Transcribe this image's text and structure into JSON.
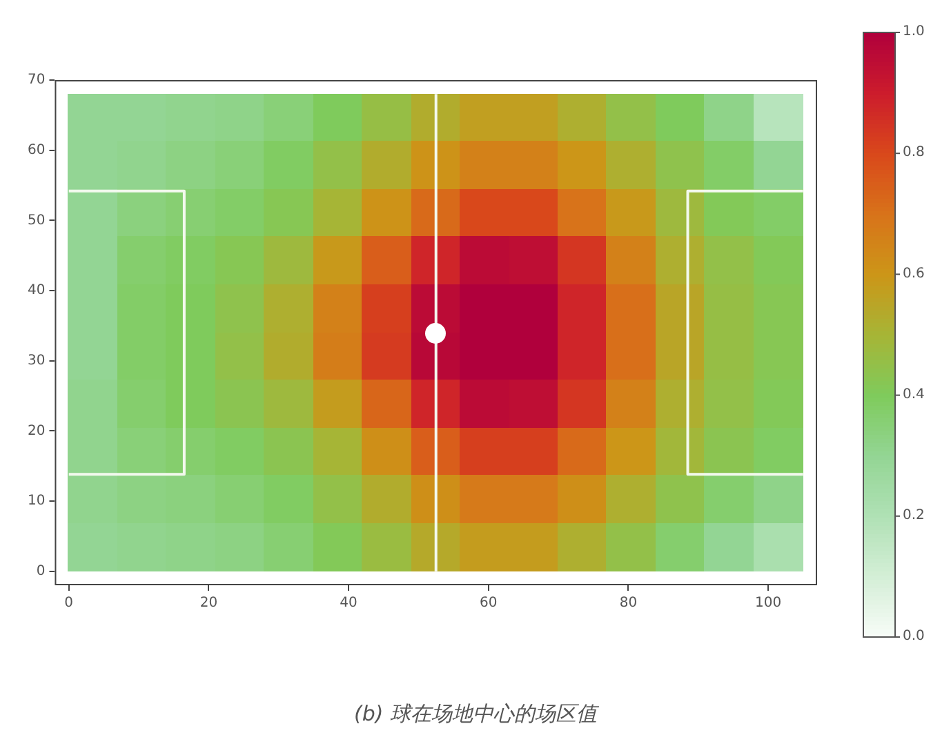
{
  "chart_data": {
    "type": "heatmap",
    "x": [
      3.5,
      10.5,
      17.5,
      24.5,
      31.5,
      38.5,
      45.5,
      52.5,
      59.5,
      66.5,
      73.5,
      80.5,
      87.5,
      94.5,
      101.5
    ],
    "y": [
      64.6,
      57.8,
      51,
      44.2,
      37.4,
      30.6,
      23.8,
      17,
      10.2,
      3.4
    ],
    "cells": [
      [
        0.3,
        0.3,
        0.31,
        0.32,
        0.35,
        0.4,
        0.46,
        0.53,
        0.57,
        0.57,
        0.52,
        0.45,
        0.4,
        0.32,
        0.18
      ],
      [
        0.3,
        0.31,
        0.33,
        0.35,
        0.39,
        0.45,
        0.53,
        0.61,
        0.66,
        0.66,
        0.6,
        0.52,
        0.44,
        0.38,
        0.3
      ],
      [
        0.3,
        0.34,
        0.36,
        0.38,
        0.42,
        0.5,
        0.61,
        0.72,
        0.8,
        0.8,
        0.7,
        0.59,
        0.48,
        0.41,
        0.38
      ],
      [
        0.3,
        0.37,
        0.39,
        0.42,
        0.48,
        0.59,
        0.75,
        0.88,
        0.96,
        0.95,
        0.84,
        0.66,
        0.52,
        0.45,
        0.41
      ],
      [
        0.3,
        0.38,
        0.4,
        0.44,
        0.52,
        0.66,
        0.82,
        0.96,
        1.0,
        1.0,
        0.88,
        0.71,
        0.55,
        0.46,
        0.42
      ],
      [
        0.3,
        0.38,
        0.4,
        0.45,
        0.53,
        0.67,
        0.83,
        0.97,
        1.0,
        1.0,
        0.88,
        0.71,
        0.55,
        0.46,
        0.42
      ],
      [
        0.31,
        0.37,
        0.4,
        0.43,
        0.48,
        0.58,
        0.73,
        0.88,
        0.96,
        0.95,
        0.84,
        0.66,
        0.52,
        0.45,
        0.41
      ],
      [
        0.31,
        0.35,
        0.37,
        0.39,
        0.43,
        0.5,
        0.62,
        0.75,
        0.82,
        0.82,
        0.72,
        0.6,
        0.49,
        0.43,
        0.39
      ],
      [
        0.31,
        0.33,
        0.34,
        0.36,
        0.39,
        0.45,
        0.53,
        0.62,
        0.68,
        0.68,
        0.62,
        0.52,
        0.44,
        0.37,
        0.32
      ],
      [
        0.3,
        0.31,
        0.32,
        0.33,
        0.36,
        0.41,
        0.47,
        0.54,
        0.58,
        0.58,
        0.52,
        0.45,
        0.37,
        0.3,
        0.22
      ]
    ],
    "series": [
      {
        "type": "line",
        "color": "#f3f9ee",
        "x": [
          0,
          16.5,
          16.5,
          0
        ],
        "values": [
          54.2,
          54.2,
          13.8,
          13.8
        ]
      },
      {
        "type": "line",
        "color": "#f3f9ee",
        "x": [
          105,
          88.5,
          88.5,
          105
        ],
        "values": [
          54.2,
          54.2,
          13.8,
          13.8
        ]
      }
    ],
    "xlim": [
      -2,
      107
    ],
    "xticks": [
      0,
      20,
      40,
      60,
      80,
      100
    ],
    "ylim": [
      -2,
      70
    ],
    "yticks": [
      0,
      10,
      20,
      30,
      40,
      50,
      60,
      70
    ],
    "clim": [
      0,
      1
    ],
    "cticks": [
      {
        "value": 0,
        "label": "0.0"
      },
      0.2,
      0.4,
      0.6,
      0.8,
      {
        "value": 1,
        "label": "1.0"
      }
    ],
    "ref_lines": [
      {
        "axis": "x",
        "value": 52.5,
        "color": "#f3f9ee"
      }
    ],
    "annotations": [
      "(b) 球在场地中心的场区值"
    ]
  }
}
